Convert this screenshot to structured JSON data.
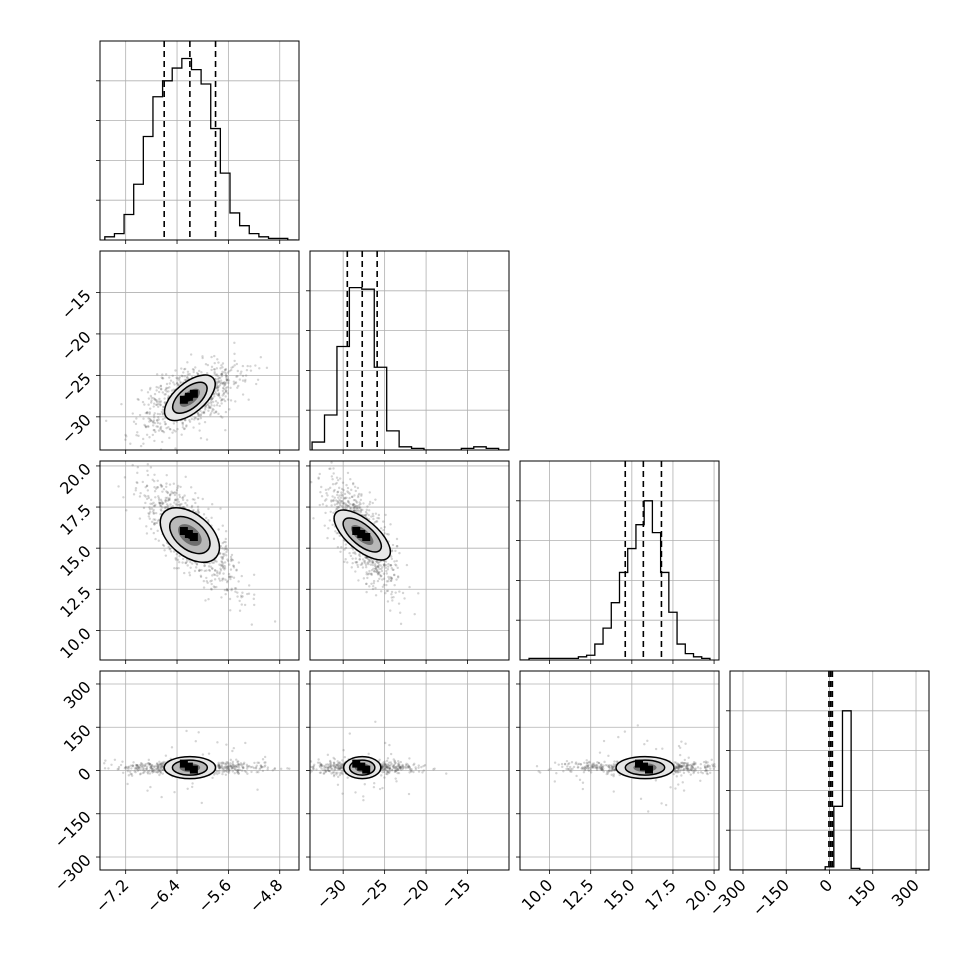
{
  "chart_data": {
    "type": "corner",
    "grid": true,
    "parameters": [
      {
        "range": [
          -7.6,
          -4.5
        ],
        "ticks": [
          "−7.2",
          "−6.4",
          "−5.6",
          "−4.8"
        ],
        "tick_values": [
          -7.2,
          -6.4,
          -5.6,
          -4.8
        ],
        "quantiles": [
          -6.6,
          -6.2,
          -5.8
        ],
        "hist_bins": [
          -7.45,
          -7.3,
          -7.15,
          -7.0,
          -6.85,
          -6.7,
          -6.55,
          -6.4,
          -6.25,
          -6.1,
          -5.95,
          -5.8,
          -5.65,
          -5.5,
          -5.35,
          -5.2,
          -5.05,
          -4.9,
          -4.75,
          -4.6
        ],
        "hist_values": [
          0.02,
          0.04,
          0.16,
          0.35,
          0.65,
          0.9,
          1.0,
          1.08,
          1.14,
          1.07,
          0.98,
          0.7,
          0.42,
          0.17,
          0.09,
          0.04,
          0.02,
          0.01,
          0.01,
          0.0
        ],
        "mean": -6.2,
        "sd": 0.25
      },
      {
        "range": [
          -34,
          -10
        ],
        "ticks": [
          "−30",
          "−25",
          "−20",
          "−15"
        ],
        "tick_values": [
          -30,
          -25,
          -20,
          -15
        ],
        "quantiles": [
          -29.5,
          -27.7,
          -25.9
        ],
        "hist_bins": [
          -33,
          -31.5,
          -30,
          -28.5,
          -27,
          -25.5,
          -24,
          -22.5,
          -21,
          -19.5,
          -18,
          -16.5,
          -15,
          -13.5,
          -12,
          -10.5
        ],
        "hist_values": [
          0.05,
          0.22,
          0.65,
          1.02,
          1.01,
          0.52,
          0.12,
          0.02,
          0.01,
          0.0,
          0.0,
          0.0,
          0.01,
          0.02,
          0.01,
          0.0
        ],
        "mean": -27.7,
        "sd": 1.4
      },
      {
        "range": [
          8.2,
          20.3
        ],
        "ticks": [
          "10.0",
          "12.5",
          "15.0",
          "17.5",
          "20.0"
        ],
        "tick_values": [
          10.0,
          12.5,
          15.0,
          17.5,
          20.0
        ],
        "quantiles": [
          14.6,
          15.7,
          16.8
        ],
        "hist_bins": [
          8.5,
          9.0,
          9.5,
          10.0,
          10.5,
          11.0,
          11.5,
          12.0,
          12.5,
          13.0,
          13.5,
          14.0,
          14.5,
          15.0,
          15.5,
          16.0,
          16.5,
          17.0,
          17.5,
          18.0,
          18.5,
          19.0,
          19.5
        ],
        "hist_values": [
          0.0,
          0.01,
          0.01,
          0.01,
          0.01,
          0.01,
          0.01,
          0.02,
          0.03,
          0.1,
          0.2,
          0.36,
          0.55,
          0.7,
          0.85,
          1.0,
          0.8,
          0.55,
          0.3,
          0.1,
          0.04,
          0.02,
          0.01
        ],
        "mean": 15.8,
        "sd": 1.1
      },
      {
        "range": [
          -345,
          345
        ],
        "ticks": [
          "−300",
          "−150",
          "0",
          "150",
          "300"
        ],
        "tick_values": [
          -300,
          -150,
          0,
          150,
          300
        ],
        "quantiles": [
          -2,
          4,
          10
        ],
        "hist_bins": [
          -330,
          -300,
          -270,
          -240,
          -210,
          -180,
          -150,
          -120,
          -90,
          -60,
          -30,
          0,
          30,
          60,
          90,
          120,
          150,
          180,
          210,
          240,
          270,
          300,
          330
        ],
        "hist_values": [
          0,
          0,
          0,
          0,
          0,
          0,
          0,
          0,
          0,
          0,
          0.0,
          0.02,
          0.4,
          1.0,
          0.01,
          0.0,
          0,
          0,
          0,
          0,
          0,
          0,
          0
        ],
        "mean": 10,
        "sd": 18
      }
    ],
    "histogram_y_max": 1.25
  }
}
